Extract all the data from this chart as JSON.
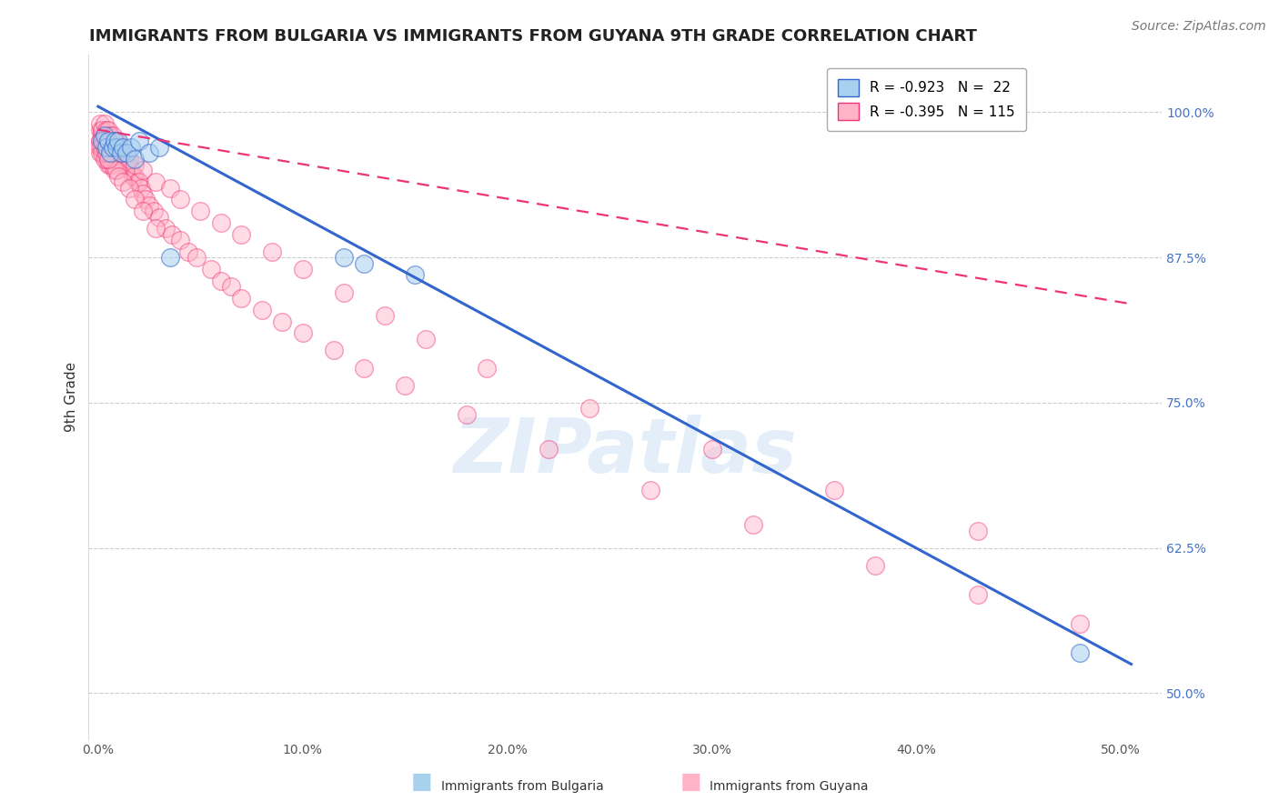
{
  "title": "IMMIGRANTS FROM BULGARIA VS IMMIGRANTS FROM GUYANA 9TH GRADE CORRELATION CHART",
  "source": "Source: ZipAtlas.com",
  "xlabel_ticks": [
    "0.0%",
    "10.0%",
    "20.0%",
    "30.0%",
    "40.0%",
    "50.0%"
  ],
  "xlabel_vals": [
    0.0,
    0.1,
    0.2,
    0.3,
    0.4,
    0.5
  ],
  "ylabel_ticks": [
    "100.0%",
    "87.5%",
    "75.0%",
    "62.5%",
    "50.0%"
  ],
  "ylabel_vals": [
    1.0,
    0.875,
    0.75,
    0.625,
    0.5
  ],
  "ylabel_label": "9th Grade",
  "xlim": [
    -0.005,
    0.52
  ],
  "ylim": [
    0.46,
    1.05
  ],
  "bulgaria_color": "#a8d1f0",
  "guyana_color": "#ffb3c6",
  "regression_bulgaria_color": "#3366cc",
  "regression_guyana_color": "#ee3377",
  "watermark_text": "ZIPatlas",
  "bulgaria_line_x": [
    0.0,
    0.505
  ],
  "bulgaria_line_y": [
    1.005,
    0.525
  ],
  "guyana_line_x": [
    0.0,
    0.505
  ],
  "guyana_line_y": [
    0.985,
    0.835
  ],
  "title_fontsize": 13,
  "source_fontsize": 10,
  "ylabel_fontsize": 11,
  "tick_fontsize": 10,
  "legend_fontsize": 11,
  "bulgaria_scatter_x": [
    0.002,
    0.003,
    0.004,
    0.005,
    0.006,
    0.007,
    0.008,
    0.009,
    0.01,
    0.011,
    0.012,
    0.014,
    0.016,
    0.018,
    0.02,
    0.025,
    0.03,
    0.035,
    0.12,
    0.13,
    0.155,
    0.48
  ],
  "bulgaria_scatter_y": [
    0.975,
    0.98,
    0.97,
    0.975,
    0.965,
    0.97,
    0.975,
    0.97,
    0.975,
    0.965,
    0.97,
    0.965,
    0.97,
    0.96,
    0.975,
    0.965,
    0.97,
    0.875,
    0.875,
    0.87,
    0.86,
    0.535
  ],
  "guyana_scatter_x": [
    0.001,
    0.001,
    0.001,
    0.002,
    0.002,
    0.002,
    0.002,
    0.003,
    0.003,
    0.003,
    0.004,
    0.004,
    0.004,
    0.005,
    0.005,
    0.005,
    0.005,
    0.006,
    0.006,
    0.007,
    0.007,
    0.007,
    0.008,
    0.008,
    0.009,
    0.009,
    0.01,
    0.011,
    0.012,
    0.013,
    0.014,
    0.015,
    0.016,
    0.017,
    0.018,
    0.019,
    0.02,
    0.021,
    0.022,
    0.023,
    0.025,
    0.027,
    0.03,
    0.033,
    0.036,
    0.04,
    0.044,
    0.048,
    0.055,
    0.06,
    0.065,
    0.07,
    0.08,
    0.09,
    0.1,
    0.115,
    0.13,
    0.15,
    0.18,
    0.22,
    0.27,
    0.32,
    0.38,
    0.43,
    0.48,
    0.001,
    0.002,
    0.003,
    0.004,
    0.005,
    0.006,
    0.007,
    0.008,
    0.009,
    0.01,
    0.012,
    0.015,
    0.018,
    0.022,
    0.028,
    0.035,
    0.04,
    0.05,
    0.06,
    0.07,
    0.085,
    0.1,
    0.12,
    0.14,
    0.16,
    0.19,
    0.24,
    0.3,
    0.36,
    0.43,
    0.001,
    0.002,
    0.003,
    0.004,
    0.005,
    0.006,
    0.007,
    0.008,
    0.009,
    0.01,
    0.012,
    0.015,
    0.018,
    0.022,
    0.028,
    0.001,
    0.002,
    0.003,
    0.003,
    0.004,
    0.005
  ],
  "guyana_scatter_y": [
    0.985,
    0.975,
    0.965,
    0.985,
    0.98,
    0.975,
    0.97,
    0.98,
    0.975,
    0.965,
    0.98,
    0.975,
    0.965,
    0.98,
    0.975,
    0.965,
    0.955,
    0.975,
    0.965,
    0.975,
    0.97,
    0.96,
    0.97,
    0.96,
    0.97,
    0.96,
    0.965,
    0.96,
    0.96,
    0.955,
    0.955,
    0.955,
    0.95,
    0.945,
    0.945,
    0.94,
    0.94,
    0.935,
    0.93,
    0.925,
    0.92,
    0.915,
    0.91,
    0.9,
    0.895,
    0.89,
    0.88,
    0.875,
    0.865,
    0.855,
    0.85,
    0.84,
    0.83,
    0.82,
    0.81,
    0.795,
    0.78,
    0.765,
    0.74,
    0.71,
    0.675,
    0.645,
    0.61,
    0.585,
    0.56,
    0.99,
    0.985,
    0.99,
    0.985,
    0.985,
    0.98,
    0.98,
    0.975,
    0.975,
    0.97,
    0.965,
    0.96,
    0.955,
    0.95,
    0.94,
    0.935,
    0.925,
    0.915,
    0.905,
    0.895,
    0.88,
    0.865,
    0.845,
    0.825,
    0.805,
    0.78,
    0.745,
    0.71,
    0.675,
    0.64,
    0.975,
    0.97,
    0.965,
    0.96,
    0.96,
    0.955,
    0.955,
    0.95,
    0.95,
    0.945,
    0.94,
    0.935,
    0.925,
    0.915,
    0.9,
    0.97,
    0.965,
    0.97,
    0.96,
    0.965,
    0.96
  ]
}
